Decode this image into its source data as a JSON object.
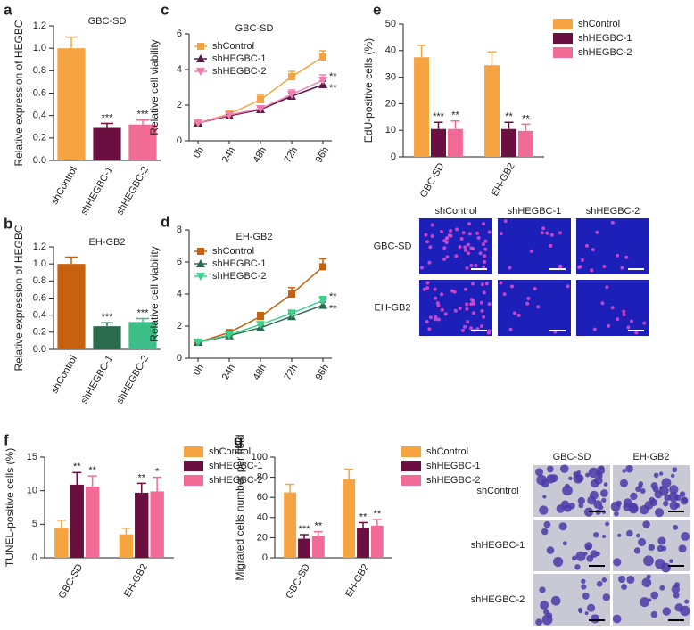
{
  "chart_data": [
    {
      "panel": "a",
      "type": "bar",
      "title": "GBC-SD",
      "ylabel": "Relative expression of HEGBC",
      "categories": [
        "shControl",
        "shHEGBC-1",
        "shHEGBC-2"
      ],
      "values": [
        1.0,
        0.29,
        0.32
      ],
      "errors": [
        0.1,
        0.04,
        0.04
      ],
      "annotations": [
        null,
        "***",
        "***"
      ],
      "colors": [
        "#f6a441",
        "#6a0f40",
        "#f26b96"
      ],
      "ylim": [
        0,
        1.2
      ],
      "yticks": [
        {
          "value": 0,
          "label": "0.0"
        },
        0.2,
        0.4,
        0.6,
        0.8,
        {
          "value": 1,
          "label": "1.0"
        },
        1.2
      ]
    },
    {
      "panel": "b",
      "type": "bar",
      "title": "EH-GB2",
      "ylabel": "Relative expression of HEGBC",
      "categories": [
        "shControl",
        "shHEGBC-1",
        "shHEGBC-2"
      ],
      "values": [
        1.0,
        0.27,
        0.32
      ],
      "errors": [
        0.08,
        0.04,
        0.04
      ],
      "annotations": [
        null,
        "***",
        "***"
      ],
      "colors": [
        "#c7600f",
        "#2a6b4e",
        "#3cbf86"
      ],
      "ylim": [
        0,
        1.2
      ],
      "yticks": [
        {
          "value": 0,
          "label": "0.0"
        },
        0.2,
        0.4,
        0.6,
        0.8,
        {
          "value": 1,
          "label": "1.0"
        },
        1.2
      ]
    },
    {
      "panel": "c",
      "type": "line",
      "title": "GBC-SD",
      "ylabel": "Relative cell viability",
      "categories": [
        "0h",
        "24h",
        "48h",
        "72h",
        "96h"
      ],
      "series": [
        {
          "name": "shControl",
          "color": "#f6a441",
          "marker": "square",
          "values": [
            1,
            1.5,
            2.3,
            3.6,
            4.7
          ],
          "errors": [
            0.05,
            0.1,
            0.25,
            0.3,
            0.35
          ],
          "annotations": [
            null,
            null,
            null,
            null,
            null
          ]
        },
        {
          "name": "shHEGBC-1",
          "color": "#5a1a4a",
          "marker": "triangle",
          "values": [
            1,
            1.4,
            1.75,
            2.5,
            3.15
          ],
          "errors": [
            0.05,
            0.08,
            0.15,
            0.2,
            0.2
          ],
          "annotations": [
            null,
            null,
            null,
            null,
            "**"
          ]
        },
        {
          "name": "shHEGBC-2",
          "color": "#f07fb0",
          "marker": "triangle-down",
          "values": [
            1,
            1.45,
            1.8,
            2.6,
            3.4
          ],
          "errors": [
            0.05,
            0.08,
            0.15,
            0.25,
            0.3
          ],
          "annotations": [
            null,
            null,
            null,
            null,
            "**"
          ]
        }
      ],
      "ylim": [
        0,
        6
      ],
      "yticks": [
        0,
        2,
        4,
        6
      ]
    },
    {
      "panel": "d",
      "type": "line",
      "title": "EH-GB2",
      "ylabel": "Relative cell viability",
      "categories": [
        "0h",
        "24h",
        "48h",
        "72h",
        "96h"
      ],
      "series": [
        {
          "name": "shControl",
          "color": "#c7600f",
          "marker": "square",
          "values": [
            1,
            1.6,
            2.6,
            4.0,
            5.7
          ],
          "errors": [
            0.05,
            0.1,
            0.25,
            0.4,
            0.5
          ],
          "annotations": [
            null,
            null,
            null,
            null,
            null
          ]
        },
        {
          "name": "shHEGBC-1",
          "color": "#2a6b4e",
          "marker": "triangle",
          "values": [
            1,
            1.4,
            1.9,
            2.6,
            3.3
          ],
          "errors": [
            0.05,
            0.08,
            0.15,
            0.2,
            0.2
          ],
          "annotations": [
            null,
            null,
            null,
            null,
            "**"
          ]
        },
        {
          "name": "shHEGBC-2",
          "color": "#3cd08a",
          "marker": "triangle-down",
          "values": [
            1,
            1.45,
            2.1,
            2.8,
            3.6
          ],
          "errors": [
            0.05,
            0.08,
            0.15,
            0.2,
            0.25
          ],
          "annotations": [
            null,
            null,
            null,
            null,
            "**"
          ]
        }
      ],
      "ylim": [
        0,
        8
      ],
      "yticks": [
        0,
        2,
        4,
        6,
        8
      ]
    },
    {
      "panel": "e",
      "type": "grouped-bar",
      "ylabel": "EdU-positive cells (%)",
      "categories": [
        "GBC-SD",
        "EH-GB2"
      ],
      "series": [
        {
          "name": "shControl",
          "color": "#f6a441",
          "values": [
            37.5,
            34.5
          ],
          "errors": [
            4.5,
            5
          ],
          "annotations": [
            null,
            null
          ]
        },
        {
          "name": "shHEGBC-1",
          "color": "#6a0f40",
          "values": [
            10.5,
            10.5
          ],
          "errors": [
            2.5,
            2.5
          ],
          "annotations": [
            "***",
            "**"
          ]
        },
        {
          "name": "shHEGBC-2",
          "color": "#f26b96",
          "values": [
            10.5,
            9.8
          ],
          "errors": [
            3,
            2.5
          ],
          "annotations": [
            "**",
            "**"
          ]
        }
      ],
      "ylim": [
        0,
        50
      ],
      "yticks": [
        0,
        10,
        20,
        30,
        40,
        50
      ]
    },
    {
      "panel": "f",
      "type": "grouped-bar",
      "ylabel": "TUNEL-positive cells (%)",
      "categories": [
        "GBC-SD",
        "EH-GB2"
      ],
      "series": [
        {
          "name": "shControl",
          "color": "#f6a441",
          "values": [
            4.5,
            3.5
          ],
          "errors": [
            1.1,
            0.9
          ],
          "annotations": [
            null,
            null
          ]
        },
        {
          "name": "shHEGBC-1",
          "color": "#6a0f40",
          "values": [
            10.9,
            9.7
          ],
          "errors": [
            1.8,
            1.4
          ],
          "annotations": [
            "**",
            "**"
          ]
        },
        {
          "name": "shHEGBC-2",
          "color": "#f26b96",
          "values": [
            10.6,
            9.9
          ],
          "errors": [
            1.6,
            2.1
          ],
          "annotations": [
            "**",
            "*"
          ]
        }
      ],
      "ylim": [
        0,
        15
      ],
      "yticks": [
        0,
        5,
        10,
        15
      ]
    },
    {
      "panel": "g",
      "type": "grouped-bar",
      "ylabel": "Migrated cells number per field",
      "categories": [
        "GBC-SD",
        "EH-GB2"
      ],
      "series": [
        {
          "name": "shControl",
          "color": "#f6a441",
          "values": [
            65,
            78
          ],
          "errors": [
            8,
            10
          ],
          "annotations": [
            null,
            null
          ]
        },
        {
          "name": "shHEGBC-1",
          "color": "#6a0f40",
          "values": [
            19,
            30
          ],
          "errors": [
            4,
            5
          ],
          "annotations": [
            "***",
            "**"
          ]
        },
        {
          "name": "shHEGBC-2",
          "color": "#f26b96",
          "values": [
            22,
            32
          ],
          "errors": [
            4,
            6
          ],
          "annotations": [
            "**",
            "**"
          ]
        }
      ],
      "ylim": [
        0,
        100
      ],
      "yticks": [
        0,
        20,
        40,
        60,
        80,
        100
      ]
    }
  ],
  "micrographs": [
    {
      "columns": [
        "shControl",
        "shHEGBC-1",
        "shHEGBC-2"
      ],
      "rows": [
        "GBC-SD",
        "EH-GB2"
      ]
    },
    {
      "columns": [
        "GBC-SD",
        "EH-GB2"
      ],
      "rows": [
        "shControl",
        "shHEGBC-1",
        "shHEGBC-2"
      ]
    }
  ]
}
